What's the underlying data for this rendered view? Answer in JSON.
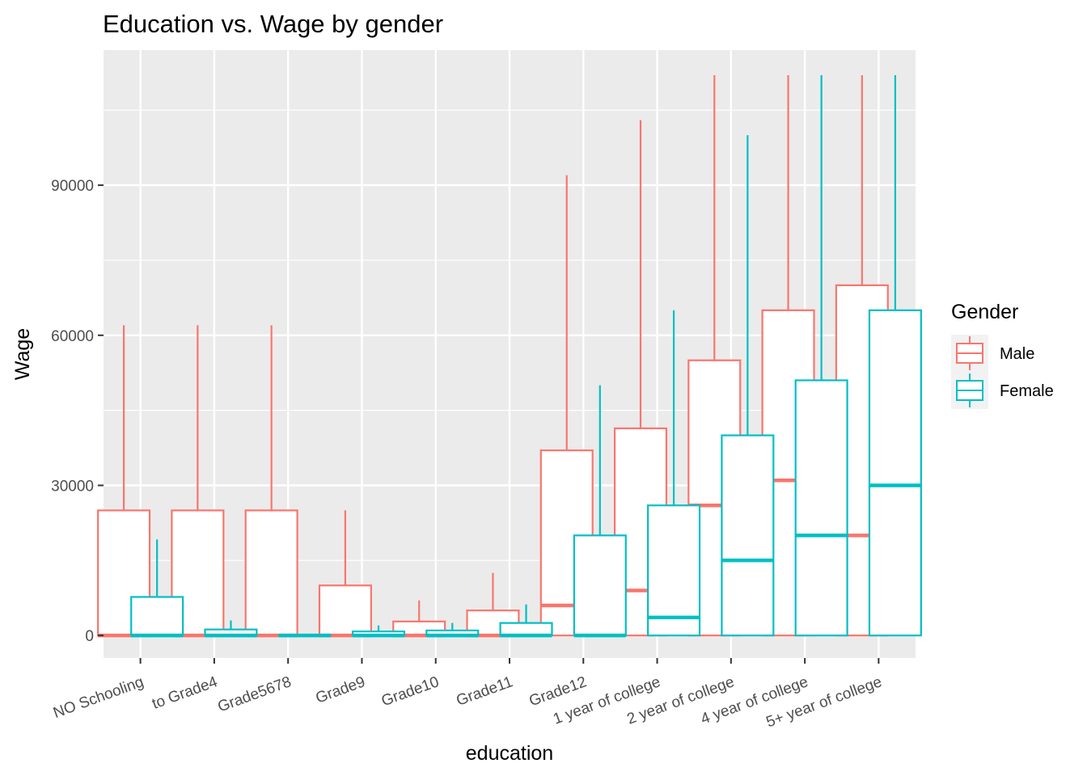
{
  "chart_data": {
    "type": "boxplot",
    "title": "Education vs. Wage by gender",
    "xlabel": "education",
    "ylabel": "Wage",
    "ylim": [
      -4500,
      117000
    ],
    "yticks": [
      0,
      30000,
      60000,
      90000
    ],
    "ytick_labels": [
      "0",
      "30000",
      "60000",
      "90000"
    ],
    "categories": [
      "NO Schooling",
      "to Grade4",
      "Grade5678",
      "Grade9",
      "Grade10",
      "Grade11",
      "Grade12",
      "1 year of college",
      "2 year of college",
      "4 year of college",
      "5+ year of college"
    ],
    "grid": true,
    "legend": {
      "title": "Gender",
      "position": "right"
    },
    "series": [
      {
        "name": "Male",
        "color": "#F8766D",
        "boxes": [
          {
            "min": 0,
            "q1": 0,
            "median": 0,
            "q3": 25000,
            "max": 62000
          },
          {
            "min": 0,
            "q1": 0,
            "median": 0,
            "q3": 25000,
            "max": 62000
          },
          {
            "min": 0,
            "q1": 0,
            "median": 0,
            "q3": 25000,
            "max": 62000
          },
          {
            "min": 0,
            "q1": 0,
            "median": 0,
            "q3": 10000,
            "max": 25000
          },
          {
            "min": 0,
            "q1": 0,
            "median": 0,
            "q3": 2800,
            "max": 7000
          },
          {
            "min": 0,
            "q1": 0,
            "median": 0,
            "q3": 5000,
            "max": 12500
          },
          {
            "min": 0,
            "q1": 0,
            "median": 6000,
            "q3": 37000,
            "max": 92000
          },
          {
            "min": 0,
            "q1": 0,
            "median": 9000,
            "q3": 41400,
            "max": 103000
          },
          {
            "min": 0,
            "q1": 0,
            "median": 26000,
            "q3": 55000,
            "max": 112000
          },
          {
            "min": 0,
            "q1": 0,
            "median": 31000,
            "q3": 65000,
            "max": 112000
          },
          {
            "min": 0,
            "q1": 0,
            "median": 20000,
            "q3": 70000,
            "max": 112000
          }
        ]
      },
      {
        "name": "Female",
        "color": "#00BFC4",
        "boxes": [
          {
            "min": 0,
            "q1": 0,
            "median": 0,
            "q3": 7700,
            "max": 19200
          },
          {
            "min": 0,
            "q1": 0,
            "median": 0,
            "q3": 1200,
            "max": 3000
          },
          {
            "min": 0,
            "q1": 0,
            "median": 0,
            "q3": 0,
            "max": 0
          },
          {
            "min": 0,
            "q1": 0,
            "median": 0,
            "q3": 800,
            "max": 2000
          },
          {
            "min": 0,
            "q1": 0,
            "median": 0,
            "q3": 1000,
            "max": 2500
          },
          {
            "min": 0,
            "q1": 0,
            "median": 0,
            "q3": 2500,
            "max": 6200
          },
          {
            "min": 0,
            "q1": 0,
            "median": 0,
            "q3": 20000,
            "max": 50000
          },
          {
            "min": 0,
            "q1": 0,
            "median": 3600,
            "q3": 26000,
            "max": 65000
          },
          {
            "min": 0,
            "q1": 0,
            "median": 15000,
            "q3": 40000,
            "max": 100000
          },
          {
            "min": 0,
            "q1": 0,
            "median": 20000,
            "q3": 51000,
            "max": 112000
          },
          {
            "min": 0,
            "q1": 0,
            "median": 30000,
            "q3": 65000,
            "max": 112000
          }
        ]
      }
    ]
  }
}
